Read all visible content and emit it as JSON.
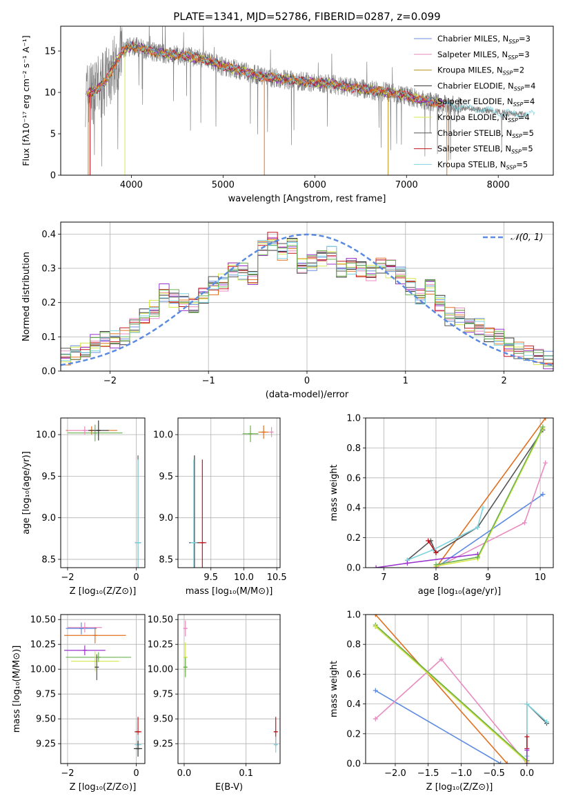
{
  "figure": {
    "title": "PLATE=1341, MJD=52786, FIBERID=0287, z=0.099"
  },
  "chart_data": [
    {
      "id": "spectrum",
      "type": "line",
      "xlabel": "wavelength [Angstrom, rest frame]",
      "ylabel": "Flux [fλ10⁻¹⁷ erg cm⁻² s⁻¹ A⁻¹]",
      "xlim": [
        3230,
        8600
      ],
      "ylim": [
        0,
        18
      ],
      "xticks": [
        "4000",
        "5000",
        "6000",
        "7000",
        "8000"
      ],
      "yticks": [
        "0",
        "5",
        "10",
        "15"
      ],
      "grid": false,
      "legend_placement": "upper right",
      "legend": [
        {
          "label": "Chabrier MILES, N",
          "sub": "SSP",
          "suffix": "=3",
          "color": "#6a8fdc"
        },
        {
          "label": "Salpeter MILES, N",
          "sub": "SSP",
          "suffix": "=3",
          "color": "#e88bc0"
        },
        {
          "label": "Kroupa MILES, N",
          "sub": "SSP",
          "suffix": "=2",
          "color": "#b5921a"
        },
        {
          "label": "Chabrier ELODIE, N",
          "sub": "SSP",
          "suffix": "=4",
          "color": "#333333"
        },
        {
          "label": "Salpeter ELODIE, N",
          "sub": "SSP",
          "suffix": "=4",
          "color": "#9932cc"
        },
        {
          "label": "Kroupa ELODIE, N",
          "sub": "SSP",
          "suffix": "=4",
          "color": "#d6e84a"
        },
        {
          "label": "Chabrier STELIB, N",
          "sub": "SSP",
          "suffix": "=5",
          "color": "#555555"
        },
        {
          "label": "Salpeter STELIB, N",
          "sub": "SSP",
          "suffix": "=5",
          "color": "#c0141c"
        },
        {
          "label": "Kroupa STELIB, N",
          "sub": "SSP",
          "suffix": "=5",
          "color": "#7fd3df"
        }
      ],
      "observed_color": "#808080",
      "continuum": {
        "x": [
          3500,
          3600,
          3700,
          3800,
          3900,
          4000,
          4100,
          4200,
          4300,
          4400,
          4500,
          4600,
          4700,
          4800,
          5000,
          5200,
          5400,
          5600,
          5800,
          6000,
          6200,
          6400,
          6600,
          6800,
          7000,
          7200,
          7400,
          7600,
          7800,
          8000,
          8200,
          8400,
          8500
        ],
        "y": [
          9.8,
          10.2,
          11.0,
          13.0,
          15.0,
          15.6,
          15.4,
          15.0,
          14.8,
          14.6,
          14.5,
          14.4,
          14.2,
          14.0,
          13.2,
          12.6,
          12.0,
          11.7,
          11.4,
          11.2,
          11.0,
          10.6,
          10.3,
          10.0,
          9.6,
          9.0,
          8.6,
          8.2,
          7.9,
          7.6,
          7.4,
          7.2,
          7.1
        ]
      },
      "model_colors": [
        "#6a8fdc",
        "#e88bc0",
        "#b5921a",
        "#333333",
        "#9932cc",
        "#d6e84a",
        "#555555",
        "#c0141c",
        "#7fd3df",
        "#e07020"
      ],
      "model_drops": [
        {
          "x": 3530,
          "color": "#e07020"
        },
        {
          "x": 3550,
          "color": "#c0141c"
        },
        {
          "x": 3930,
          "color": "#d6e84a"
        },
        {
          "x": 5450,
          "color": "#e07020"
        },
        {
          "x": 6800,
          "color": "#b5921a"
        },
        {
          "x": 7440,
          "color": "#e07020"
        }
      ]
    },
    {
      "id": "residuals",
      "type": "step-histogram",
      "xlabel": "(data-model)/error",
      "ylabel": "Normed distribution",
      "xlim": [
        -2.5,
        2.5
      ],
      "ylim": [
        0,
        0.435
      ],
      "xticks": [
        -2,
        -1,
        0,
        1,
        2
      ],
      "xtick_labels": [
        "−2",
        "−1",
        "0",
        "1",
        "2"
      ],
      "yticks": [
        0.0,
        0.1,
        0.2,
        0.3,
        0.4
      ],
      "ytick_labels": [
        "0.0",
        "0.1",
        "0.2",
        "0.3",
        "0.4"
      ],
      "grid": true,
      "bin_width": 0.1,
      "legend_placement": "upper right",
      "reference": {
        "label": "𝒩(0, 1)",
        "mean": 0,
        "sigma": 1,
        "color": "#5b8be0"
      },
      "base_hist": [
        0.04,
        0.05,
        0.06,
        0.08,
        0.09,
        0.09,
        0.1,
        0.13,
        0.16,
        0.18,
        0.23,
        0.21,
        0.2,
        0.19,
        0.22,
        0.25,
        0.26,
        0.3,
        0.29,
        0.27,
        0.36,
        0.38,
        0.35,
        0.37,
        0.31,
        0.32,
        0.33,
        0.34,
        0.3,
        0.31,
        0.3,
        0.29,
        0.31,
        0.3,
        0.28,
        0.25,
        0.22,
        0.25,
        0.2,
        0.16,
        0.16,
        0.13,
        0.13,
        0.11,
        0.1,
        0.07,
        0.06,
        0.05,
        0.04,
        0.03
      ],
      "series_colors": [
        "#6a8fdc",
        "#e88bc0",
        "#e07020",
        "#333333",
        "#9932cc",
        "#d6e84a",
        "#555555",
        "#c0141c",
        "#7fd3df",
        "#6ab04c"
      ]
    },
    {
      "id": "age_vs_Z",
      "type": "errorbar",
      "xlabel": "Z [log₁₀(Z/Z⊙)]",
      "ylabel": "age  [log₁₀(age/yr)]",
      "xlim": [
        -2.2,
        0.25
      ],
      "ylim": [
        8.4,
        10.2
      ],
      "xticks": [
        -2,
        0
      ],
      "xtick_labels": [
        "−2",
        "0"
      ],
      "yticks": [
        8.5,
        9.0,
        9.5,
        10.0
      ],
      "ytick_labels": [
        "8.5",
        "9.0",
        "9.5",
        "10.0"
      ],
      "grid": true,
      "points": [
        {
          "x": -1.3,
          "y": 10.05,
          "xerr": 0.75,
          "yerr": 0.05,
          "color": "#e07020"
        },
        {
          "x": -1.2,
          "y": 10.02,
          "xerr": 0.8,
          "yerr": 0.1,
          "color": "#6ab04c"
        },
        {
          "x": -1.5,
          "y": 10.05,
          "xerr": 0.5,
          "yerr": 0.05,
          "color": "#e88bc0"
        },
        {
          "x": -1.1,
          "y": 10.05,
          "xerr": 0.3,
          "yerr": 0.12,
          "color": "#333333"
        },
        {
          "x": 0.05,
          "y": 8.7,
          "xerr": 0.08,
          "yerr": 1.05,
          "color": "#555555"
        },
        {
          "x": 0.05,
          "y": 8.7,
          "xerr": 0.1,
          "yerr": 1.0,
          "color": "#7fd3df"
        }
      ]
    },
    {
      "id": "age_vs_mass",
      "type": "errorbar",
      "xlabel": "mass [log₁₀(M/M⊙)]",
      "ylabel": "",
      "xlim": [
        9.0,
        10.55
      ],
      "ylim": [
        8.4,
        10.2
      ],
      "xticks": [
        9.5,
        10.0,
        10.5
      ],
      "xtick_labels": [
        "9.5",
        "10.0",
        "10.5"
      ],
      "yticks": [
        8.5,
        9.0,
        9.5,
        10.0
      ],
      "ytick_labels": [
        "8.5",
        "9.0",
        "9.5",
        "10.0"
      ],
      "grid": true,
      "points": [
        {
          "x": 10.1,
          "y": 10.01,
          "xerr": 0.12,
          "yerr": 0.1,
          "color": "#6ab04c"
        },
        {
          "x": 10.3,
          "y": 10.03,
          "xerr": 0.08,
          "yerr": 0.08,
          "color": "#e07020"
        },
        {
          "x": 10.42,
          "y": 10.03,
          "xerr": 0.03,
          "yerr": 0.06,
          "color": "#e88bc0"
        },
        {
          "x": 9.25,
          "y": 8.7,
          "xerr": 0.08,
          "yerr": 1.05,
          "color": "#333333"
        },
        {
          "x": 9.37,
          "y": 8.7,
          "xerr": 0.06,
          "yerr": 1.0,
          "color": "#c0141c"
        },
        {
          "x": 9.24,
          "y": 8.7,
          "xerr": 0.05,
          "yerr": 1.0,
          "color": "#7fd3df"
        }
      ]
    },
    {
      "id": "mass_weight_vs_age",
      "type": "line",
      "xlabel": "age  [log₁₀(age/yr)]",
      "ylabel": "mass weight",
      "xlim": [
        6.65,
        10.25
      ],
      "ylim": [
        0,
        1
      ],
      "xticks": [
        7,
        8,
        9,
        10
      ],
      "xtick_labels": [
        "7",
        "8",
        "9",
        "10"
      ],
      "yticks": [
        0.0,
        0.2,
        0.4,
        0.6,
        0.8,
        1.0
      ],
      "ytick_labels": [
        "0.0",
        "0.2",
        "0.4",
        "0.6",
        "0.8",
        "1.0"
      ],
      "grid": true,
      "series": [
        {
          "color": "#5b8be0",
          "x": [
            8.0,
            10.05
          ],
          "y": [
            0.0,
            0.49
          ]
        },
        {
          "color": "#e07020",
          "x": [
            8.0,
            10.1
          ],
          "y": [
            0.0,
            1.0
          ]
        },
        {
          "color": "#e88bc0",
          "x": [
            8.0,
            9.7,
            10.1
          ],
          "y": [
            0.0,
            0.3,
            0.7
          ]
        },
        {
          "color": "#555555",
          "x": [
            7.45,
            7.9,
            8.0,
            8.8,
            10.05
          ],
          "y": [
            0.05,
            0.18,
            0.1,
            0.27,
            0.92
          ]
        },
        {
          "color": "#7fd3df",
          "x": [
            7.45,
            7.95,
            8.8,
            8.9
          ],
          "y": [
            0.05,
            0.12,
            0.27,
            0.4
          ]
        },
        {
          "color": "#c0141c",
          "x": [
            7.85,
            8.0
          ],
          "y": [
            0.18,
            0.1
          ]
        },
        {
          "color": "#9932cc",
          "x": [
            6.85,
            7.45,
            8.8
          ],
          "y": [
            0.0,
            0.03,
            0.09
          ]
        },
        {
          "color": "#d6e84a",
          "x": [
            8.0,
            8.8,
            10.05
          ],
          "y": [
            0.01,
            0.06,
            0.93
          ]
        },
        {
          "color": "#6ab04c",
          "x": [
            8.0,
            8.8,
            10.05
          ],
          "y": [
            0.02,
            0.07,
            0.94
          ]
        }
      ]
    },
    {
      "id": "mass_vs_Z",
      "type": "errorbar",
      "xlabel": "Z [log₁₀(Z/Z⊙)]",
      "ylabel": "mass [log₁₀(M/M⊙)]",
      "xlim": [
        -2.2,
        0.25
      ],
      "ylim": [
        9.05,
        10.55
      ],
      "xticks": [
        -2,
        0
      ],
      "xtick_labels": [
        "−2",
        "0"
      ],
      "yticks": [
        9.25,
        9.5,
        9.75,
        10.0,
        10.25,
        10.5
      ],
      "ytick_labels": [
        "9.25",
        "9.50",
        "9.75",
        "10.00",
        "10.25",
        "10.50"
      ],
      "grid": true,
      "points": [
        {
          "x": -1.6,
          "y": 10.41,
          "xerr": 0.45,
          "yerr": 0.06,
          "color": "#5b8be0"
        },
        {
          "x": -1.5,
          "y": 10.42,
          "xerr": 0.5,
          "yerr": 0.05,
          "color": "#e88bc0"
        },
        {
          "x": -1.2,
          "y": 10.34,
          "xerr": 0.9,
          "yerr": 0.08,
          "color": "#e07020"
        },
        {
          "x": -1.5,
          "y": 10.19,
          "xerr": 0.6,
          "yerr": 0.05,
          "color": "#9932cc"
        },
        {
          "x": -1.1,
          "y": 10.12,
          "xerr": 0.95,
          "yerr": 0.05,
          "color": "#6ab04c"
        },
        {
          "x": -1.2,
          "y": 10.08,
          "xerr": 0.7,
          "yerr": 0.1,
          "color": "#d6e84a"
        },
        {
          "x": -1.15,
          "y": 10.02,
          "xerr": 0.05,
          "yerr": 0.13,
          "color": "#555555"
        },
        {
          "x": 0.05,
          "y": 9.37,
          "xerr": 0.1,
          "yerr": 0.15,
          "color": "#c0141c"
        },
        {
          "x": 0.05,
          "y": 9.24,
          "xerr": 0.1,
          "yerr": 0.1,
          "color": "#7fd3df"
        },
        {
          "x": 0.05,
          "y": 9.2,
          "xerr": 0.12,
          "yerr": 0.08,
          "color": "#333333"
        }
      ]
    },
    {
      "id": "mass_vs_EBV",
      "type": "errorbar",
      "xlabel": "E(B-V)",
      "ylabel": "",
      "xlim": [
        -0.01,
        0.155
      ],
      "ylim": [
        9.05,
        10.55
      ],
      "xticks": [
        0.0,
        0.1
      ],
      "xtick_labels": [
        "0.0",
        "0.1"
      ],
      "yticks": [
        9.25,
        9.5,
        9.75,
        10.0,
        10.25,
        10.5
      ],
      "ytick_labels": [
        "9.25",
        "9.50",
        "9.75",
        "10.00",
        "10.25",
        "10.50"
      ],
      "grid": true,
      "points": [
        {
          "x": 0.002,
          "y": 10.41,
          "xerr": 0.0,
          "yerr": 0.08,
          "color": "#e88bc0"
        },
        {
          "x": 0.002,
          "y": 10.12,
          "xerr": 0.0,
          "yerr": 0.15,
          "color": "#d6e84a"
        },
        {
          "x": 0.002,
          "y": 10.02,
          "xerr": 0.0,
          "yerr": 0.1,
          "color": "#6ab04c"
        },
        {
          "x": 0.148,
          "y": 9.37,
          "xerr": 0.0,
          "yerr": 0.15,
          "color": "#c0141c"
        },
        {
          "x": 0.148,
          "y": 9.24,
          "xerr": 0.0,
          "yerr": 0.08,
          "color": "#7fd3df"
        }
      ]
    },
    {
      "id": "mass_weight_vs_Z",
      "type": "line",
      "xlabel": "Z [log₁₀(Z/Z⊙)]",
      "ylabel": "mass weight",
      "xlim": [
        -2.45,
        0.4
      ],
      "ylim": [
        0,
        1
      ],
      "xticks": [
        -2.0,
        -1.5,
        -1.0,
        -0.5,
        0.0
      ],
      "xtick_labels": [
        "−2.0",
        "−1.5",
        "−1.0",
        "−0.5",
        "0.0"
      ],
      "yticks": [
        0.0,
        0.2,
        0.4,
        0.6,
        0.8,
        1.0
      ],
      "ytick_labels": [
        "0.0",
        "0.2",
        "0.4",
        "0.6",
        "0.8",
        "1.0"
      ],
      "grid": true,
      "series": [
        {
          "color": "#5b8be0",
          "x": [
            -2.3,
            -0.4
          ],
          "y": [
            0.49,
            0.0
          ]
        },
        {
          "color": "#e07020",
          "x": [
            -2.3,
            -0.3
          ],
          "y": [
            1.0,
            0.0
          ]
        },
        {
          "color": "#e88bc0",
          "x": [
            -2.3,
            -1.3,
            0.0
          ],
          "y": [
            0.3,
            0.7,
            0.0
          ]
        },
        {
          "color": "#555555",
          "x": [
            -2.3,
            0.0,
            0.0,
            0.3
          ],
          "y": [
            0.92,
            0.02,
            0.4,
            0.27
          ]
        },
        {
          "color": "#6ab04c",
          "x": [
            -2.3,
            0.0
          ],
          "y": [
            0.93,
            0.02
          ]
        },
        {
          "color": "#d6e84a",
          "x": [
            -2.3,
            0.0
          ],
          "y": [
            0.92,
            0.01
          ]
        },
        {
          "color": "#7fd3df",
          "x": [
            0.0,
            0.0,
            0.3
          ],
          "y": [
            0.05,
            0.4,
            0.28
          ]
        },
        {
          "color": "#c0141c",
          "x": [
            0.0,
            0.0
          ],
          "y": [
            0.1,
            0.18
          ]
        },
        {
          "color": "#9932cc",
          "x": [
            0.0,
            0.0
          ],
          "y": [
            0.0,
            0.09
          ]
        }
      ]
    }
  ]
}
